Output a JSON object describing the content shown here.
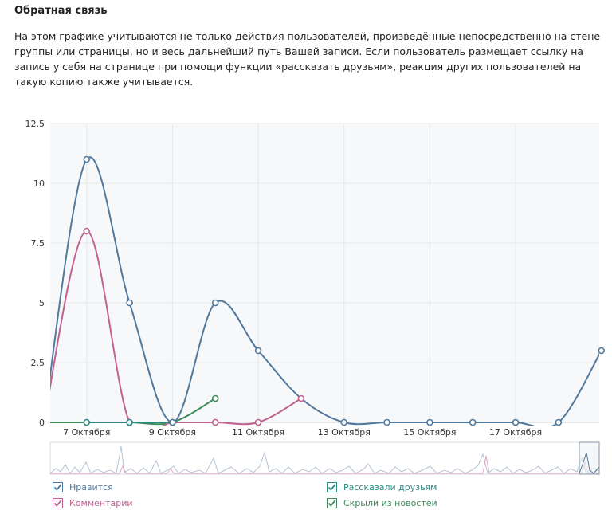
{
  "header": {
    "title": "Обратная связь",
    "description": "На этом графике учитываются не только действия пользователей, произведённые непосредственно на стене группы или страницы, но и весь дальнейший путь Вашей записи. Если пользователь размещает ссылку на запись у себя на странице при помощи функции «рассказать друзьям», реакция других пользователей на такую копию также учитывается."
  },
  "chart_data": {
    "type": "line",
    "title": "",
    "xlabel": "",
    "ylabel": "",
    "ylim": [
      0,
      12.5
    ],
    "yticks": [
      "0",
      "2.5",
      "5",
      "7.5",
      "10",
      "12.5"
    ],
    "xticks": [
      {
        "label": "7 Октября",
        "x": 7
      },
      {
        "label": "9 Октября",
        "x": 9
      },
      {
        "label": "11 Октября",
        "x": 11
      },
      {
        "label": "13 Октября",
        "x": 13
      },
      {
        "label": "15 Октября",
        "x": 15
      },
      {
        "label": "17 Октября",
        "x": 17
      }
    ],
    "xlim": [
      6.15,
      18.95
    ],
    "grid": true,
    "smooth": true,
    "series": [
      {
        "name": "Нравится",
        "color": "#50799d",
        "points": [
          [
            6,
            0
          ],
          [
            7,
            11
          ],
          [
            8,
            5
          ],
          [
            9,
            0
          ],
          [
            10,
            5
          ],
          [
            11,
            3
          ],
          [
            12,
            1
          ],
          [
            13,
            0
          ],
          [
            14,
            0
          ],
          [
            15,
            0
          ],
          [
            16,
            0
          ],
          [
            17,
            0
          ],
          [
            18,
            0
          ],
          [
            19,
            3
          ]
        ],
        "markers": [
          [
            7,
            11
          ],
          [
            8,
            5
          ],
          [
            9,
            0
          ],
          [
            10,
            5
          ],
          [
            11,
            3
          ],
          [
            13,
            0
          ],
          [
            14,
            0
          ],
          [
            15,
            0
          ],
          [
            16,
            0
          ],
          [
            17,
            0
          ],
          [
            18,
            0
          ],
          [
            19,
            3
          ]
        ]
      },
      {
        "name": "Комментарии",
        "color": "#c0628f",
        "points": [
          [
            6,
            0
          ],
          [
            7,
            8
          ],
          [
            8,
            0
          ],
          [
            9,
            0
          ],
          [
            10,
            0
          ],
          [
            11,
            0
          ],
          [
            12,
            1
          ]
        ],
        "markers": [
          [
            7,
            8
          ],
          [
            8,
            0
          ],
          [
            10,
            0
          ],
          [
            11,
            0
          ],
          [
            12,
            1
          ]
        ]
      },
      {
        "name": "Рассказали друзьям",
        "color": "#2a8b83",
        "points": [
          [
            7,
            0
          ],
          [
            8,
            0
          ],
          [
            9,
            0
          ]
        ],
        "markers": [
          [
            7,
            0
          ],
          [
            8,
            0
          ],
          [
            9,
            0
          ]
        ]
      },
      {
        "name": "Скрыли из новостей",
        "color": "#3e8a5b",
        "points": [
          [
            6,
            0
          ],
          [
            7,
            0
          ],
          [
            8,
            0
          ],
          [
            9,
            0
          ],
          [
            10,
            1
          ]
        ],
        "markers": [
          [
            9,
            0
          ],
          [
            10,
            1
          ]
        ]
      }
    ],
    "legend": {
      "placement": "bottom"
    }
  }
}
